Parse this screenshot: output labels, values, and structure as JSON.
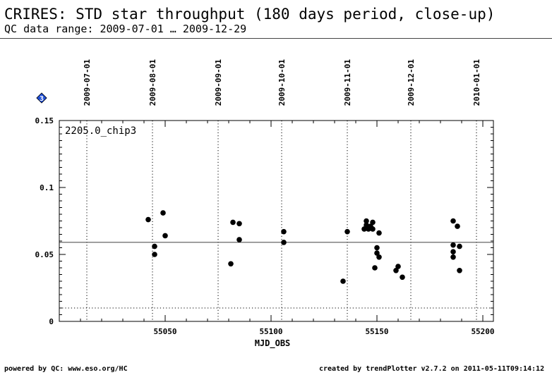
{
  "header": {
    "title": "CRIRES: STD star throughput (180 days period, close-up)",
    "subtitle": "QC data range: 2009-07-01 … 2009-12-29"
  },
  "footer": {
    "left": "powered by QC: www.eso.org/HC",
    "right": "created by trendPlotter v2.7.2 on 2011-05-11T09:14:12"
  },
  "panel": {
    "badge_label": "3",
    "badge_color": "#1f4fd6"
  },
  "chart_data": {
    "type": "scatter",
    "panel_label": "2205.0_chip3",
    "xlabel": "MJD_OBS",
    "ylabel": "",
    "xlim": [
      55000,
      55205
    ],
    "ylim": [
      0,
      0.15
    ],
    "x_ticks": [
      55050,
      55100,
      55150,
      55200
    ],
    "y_ticks": [
      0,
      0.05,
      0.1,
      0.15
    ],
    "y_tick_labels": [
      "0",
      "0.05",
      "0.1",
      "0.15"
    ],
    "date_markers": [
      {
        "label": "2009-07-01",
        "mjd": 55013
      },
      {
        "label": "2009-08-01",
        "mjd": 55044
      },
      {
        "label": "2009-09-01",
        "mjd": 55075
      },
      {
        "label": "2009-10-01",
        "mjd": 55105
      },
      {
        "label": "2009-11-01",
        "mjd": 55136
      },
      {
        "label": "2009-12-01",
        "mjd": 55166
      },
      {
        "label": "2010-01-01",
        "mjd": 55197
      }
    ],
    "reference_lines": [
      {
        "y": 0.059,
        "style": "solid"
      },
      {
        "y": 0.01,
        "style": "dotted"
      }
    ],
    "point_color": "#000000",
    "series": [
      {
        "points": [
          [
            55042,
            0.076
          ],
          [
            55045,
            0.056
          ],
          [
            55045,
            0.05
          ],
          [
            55049,
            0.081
          ],
          [
            55050,
            0.064
          ],
          [
            55081,
            0.043
          ],
          [
            55082,
            0.074
          ],
          [
            55085,
            0.073
          ],
          [
            55085,
            0.061
          ],
          [
            55106,
            0.067
          ],
          [
            55106,
            0.059
          ],
          [
            55134,
            0.03
          ],
          [
            55136,
            0.067
          ],
          [
            55144,
            0.069
          ],
          [
            55145,
            0.072
          ],
          [
            55145,
            0.075
          ],
          [
            55146,
            0.069
          ],
          [
            55147,
            0.071
          ],
          [
            55148,
            0.074
          ],
          [
            55148,
            0.069
          ],
          [
            55149,
            0.04
          ],
          [
            55150,
            0.051
          ],
          [
            55150,
            0.055
          ],
          [
            55151,
            0.066
          ],
          [
            55151,
            0.048
          ],
          [
            55159,
            0.038
          ],
          [
            55160,
            0.041
          ],
          [
            55162,
            0.033
          ],
          [
            55186,
            0.075
          ],
          [
            55186,
            0.057
          ],
          [
            55186,
            0.052
          ],
          [
            55186,
            0.048
          ],
          [
            55188,
            0.071
          ],
          [
            55189,
            0.056
          ],
          [
            55189,
            0.038
          ]
        ]
      }
    ]
  }
}
